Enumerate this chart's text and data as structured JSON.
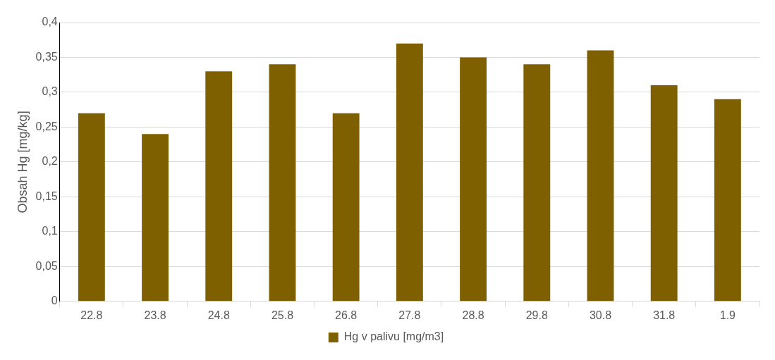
{
  "chart_data": {
    "type": "bar",
    "ylabel": "Obsah Hg [mg/kg]",
    "categories": [
      "22.8",
      "23.8",
      "24.8",
      "25.8",
      "26.8",
      "27.8",
      "28.8",
      "29.8",
      "30.8",
      "31.8",
      "1.9"
    ],
    "series": [
      {
        "name": "Hg v palivu [mg/m3]",
        "color": "#7f6000",
        "values": [
          0.27,
          0.24,
          0.33,
          0.34,
          0.27,
          0.37,
          0.35,
          0.34,
          0.36,
          0.31,
          0.29
        ]
      }
    ],
    "ylim": [
      0,
      0.4
    ],
    "yticks": [
      {
        "value": 0,
        "label": "0"
      },
      {
        "value": 0.05,
        "label": "0,05"
      },
      {
        "value": 0.1,
        "label": "0,1"
      },
      {
        "value": 0.15,
        "label": "0,15"
      },
      {
        "value": 0.2,
        "label": "0,2"
      },
      {
        "value": 0.25,
        "label": "0,25"
      },
      {
        "value": 0.3,
        "label": "0,3"
      },
      {
        "value": 0.35,
        "label": "0,35"
      },
      {
        "value": 0.4,
        "label": "0,4"
      }
    ],
    "grid": "y",
    "legend": "bottom"
  }
}
